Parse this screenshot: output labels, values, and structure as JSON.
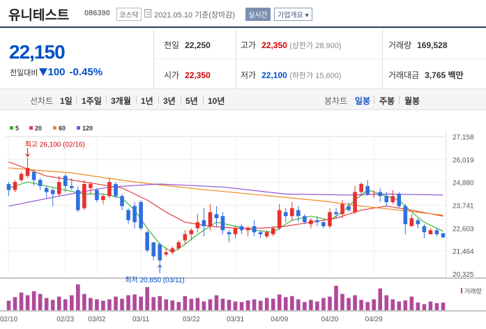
{
  "header": {
    "stock_name": "유니테스트",
    "stock_code": "086390",
    "market": "코스닥",
    "date": "2021.05.10 기준(장마감)",
    "realtime_label": "실시간",
    "company_info_label": "기업개요 ▾"
  },
  "price": {
    "current": "22,150",
    "change_label": "전일대비",
    "change_value": "100",
    "change_pct": "-0.45%"
  },
  "stats": {
    "prev_close_label": "전일",
    "prev_close": "22,250",
    "high_label": "고가",
    "high": "22,350",
    "upper_limit": "(상한가 28,900)",
    "volume_label": "거래량",
    "volume": "169,528",
    "open_label": "시가",
    "open": "22,350",
    "low_label": "저가",
    "low": "22,100",
    "lower_limit": "(하한가 15,600)",
    "trade_value_label": "거래대금",
    "trade_value": "3,765 백만"
  },
  "period_bar": {
    "line_chart_label": "선차트",
    "line_periods": [
      "1일",
      "1주일",
      "3개월",
      "1년",
      "3년",
      "5년",
      "10년"
    ],
    "candle_chart_label": "봉차트",
    "candle_periods": [
      "일봉",
      "주봉",
      "월봉"
    ],
    "active_candle": "일봉"
  },
  "legend": [
    {
      "label": "5",
      "color": "#3bb33b"
    },
    {
      "label": "20",
      "color": "#e04040"
    },
    {
      "label": "60",
      "color": "#f08a20"
    },
    {
      "label": "120",
      "color": "#9050d0"
    }
  ],
  "chart_data": {
    "type": "candlestick",
    "y_ticks": [
      "27,158",
      "26,019",
      "24,880",
      "23,741",
      "22,603",
      "21,464",
      "20,325"
    ],
    "ylim": [
      20325,
      27158
    ],
    "x_ticks": [
      "02/10",
      "02/23",
      "03/02",
      "03/11",
      "03/22",
      "03/31",
      "04/09",
      "04/20",
      "04/29"
    ],
    "x_tick_index": [
      0,
      9,
      14,
      21,
      29,
      36,
      43,
      51,
      58
    ],
    "annotations": {
      "high": "최고 26,100 (02/16)",
      "low": "최저 20,850 (03/11)"
    },
    "volume_label": "거래량",
    "candles": [
      [
        24800,
        24500,
        24900,
        24200
      ],
      [
        24500,
        24900,
        25000,
        24400
      ],
      [
        25000,
        25300,
        25400,
        24900
      ],
      [
        25200,
        25600,
        26100,
        25100
      ],
      [
        25400,
        25000,
        25500,
        24700
      ],
      [
        25000,
        24700,
        25100,
        24500
      ],
      [
        24600,
        24400,
        24700,
        24100
      ],
      [
        24500,
        24300,
        24600,
        23700
      ],
      [
        24300,
        24900,
        25200,
        24200
      ],
      [
        25200,
        24700,
        25300,
        24400
      ],
      [
        24700,
        24600,
        25100,
        24500
      ],
      [
        24500,
        23500,
        24700,
        23400
      ],
      [
        23600,
        24800,
        25000,
        23500
      ],
      [
        24600,
        24800,
        24900,
        24300
      ],
      [
        24500,
        24000,
        24600,
        23900
      ],
      [
        24000,
        24200,
        24300,
        23800
      ],
      [
        24200,
        24900,
        25100,
        24100
      ],
      [
        24800,
        24200,
        24900,
        24100
      ],
      [
        24200,
        23700,
        24300,
        23500
      ],
      [
        23500,
        23000,
        23600,
        22800
      ],
      [
        23700,
        22900,
        23900,
        22600
      ],
      [
        23900,
        22600,
        24000,
        22500
      ],
      [
        22400,
        21500,
        22500,
        21400
      ],
      [
        21900,
        21200,
        21900,
        21000
      ],
      [
        21800,
        21000,
        21900,
        20850
      ],
      [
        21300,
        21400,
        21600,
        21200
      ],
      [
        21400,
        21600,
        21700,
        21300
      ],
      [
        21600,
        21900,
        22000,
        21500
      ],
      [
        22000,
        22300,
        22500,
        21800
      ],
      [
        22300,
        22500,
        22600,
        22000
      ],
      [
        22600,
        22900,
        23300,
        22400
      ],
      [
        23000,
        22700,
        23600,
        22200
      ],
      [
        22700,
        23400,
        23800,
        22500
      ],
      [
        23300,
        23100,
        23700,
        22700
      ],
      [
        23200,
        22500,
        23400,
        22300
      ],
      [
        22400,
        22300,
        22500,
        21900
      ],
      [
        22300,
        22600,
        22700,
        22100
      ],
      [
        22700,
        22500,
        22800,
        22300
      ],
      [
        22500,
        22600,
        22700,
        22200
      ],
      [
        22700,
        22400,
        23000,
        22200
      ],
      [
        22400,
        22300,
        22500,
        22100
      ],
      [
        22200,
        22400,
        22500,
        22100
      ],
      [
        22300,
        22600,
        22700,
        22200
      ],
      [
        22600,
        23500,
        23800,
        22500
      ],
      [
        23400,
        23200,
        23600,
        22900
      ],
      [
        23200,
        23600,
        23900,
        23000
      ],
      [
        23500,
        23200,
        23700,
        22900
      ],
      [
        23200,
        22900,
        23300,
        22800
      ],
      [
        22800,
        23000,
        23100,
        22600
      ],
      [
        23000,
        22900,
        23200,
        22700
      ],
      [
        22900,
        22700,
        23000,
        22600
      ],
      [
        22700,
        23400,
        23600,
        22600
      ],
      [
        23400,
        23300,
        23600,
        23100
      ],
      [
        23300,
        23800,
        24000,
        23100
      ],
      [
        23700,
        23500,
        23900,
        23400
      ],
      [
        23400,
        24400,
        24700,
        23300
      ],
      [
        24400,
        24800,
        24900,
        24200
      ],
      [
        24700,
        24300,
        25000,
        24200
      ],
      [
        24300,
        24300,
        24500,
        24100
      ],
      [
        24400,
        24200,
        24600,
        23900
      ],
      [
        24200,
        23900,
        24400,
        23700
      ],
      [
        23900,
        24200,
        24500,
        23800
      ],
      [
        24300,
        23700,
        24400,
        23600
      ],
      [
        23700,
        22800,
        23800,
        22300
      ],
      [
        22700,
        23100,
        23300,
        22700
      ],
      [
        23000,
        22800,
        23100,
        22600
      ],
      [
        22700,
        22400,
        22800,
        22100
      ],
      [
        22300,
        22500,
        22600,
        22300
      ],
      [
        22500,
        22300,
        22600,
        22200
      ],
      [
        22350,
        22150,
        22350,
        22100
      ]
    ],
    "volume": [
      35,
      48,
      65,
      55,
      70,
      60,
      45,
      38,
      50,
      40,
      55,
      95,
      60,
      45,
      40,
      35,
      40,
      50,
      42,
      55,
      58,
      50,
      85,
      48,
      52,
      40,
      36,
      30,
      52,
      42,
      45,
      32,
      40,
      55,
      42,
      38,
      32,
      30,
      36,
      40,
      35,
      45,
      42,
      58,
      48,
      52,
      40,
      30,
      38,
      32,
      45,
      50,
      90,
      60,
      45,
      55,
      38,
      30,
      40,
      80,
      55,
      40,
      32,
      36,
      50,
      28,
      22,
      32,
      26,
      28
    ],
    "ma_series": [
      {
        "label": "5",
        "color": "#3bb33b",
        "points": [
          [
            0,
            24600
          ],
          [
            3,
            24900
          ],
          [
            6,
            24700
          ],
          [
            9,
            24500
          ],
          [
            12,
            24300
          ],
          [
            15,
            24300
          ],
          [
            18,
            24100
          ],
          [
            20,
            23500
          ],
          [
            22,
            22600
          ],
          [
            24,
            21800
          ],
          [
            26,
            21400
          ],
          [
            28,
            21800
          ],
          [
            30,
            22300
          ],
          [
            33,
            22900
          ],
          [
            36,
            22700
          ],
          [
            39,
            22500
          ],
          [
            42,
            22400
          ],
          [
            45,
            23000
          ],
          [
            48,
            23200
          ],
          [
            51,
            23000
          ],
          [
            53,
            23400
          ],
          [
            55,
            24000
          ],
          [
            57,
            24500
          ],
          [
            60,
            24200
          ],
          [
            62,
            24000
          ],
          [
            64,
            23400
          ],
          [
            66,
            22900
          ],
          [
            69,
            22450
          ]
        ]
      },
      {
        "label": "20",
        "color": "#e04040",
        "points": [
          [
            0,
            25900
          ],
          [
            6,
            25200
          ],
          [
            12,
            24900
          ],
          [
            18,
            24600
          ],
          [
            22,
            24000
          ],
          [
            25,
            23400
          ],
          [
            28,
            22900
          ],
          [
            32,
            22700
          ],
          [
            36,
            22600
          ],
          [
            40,
            22600
          ],
          [
            44,
            22700
          ],
          [
            48,
            22900
          ],
          [
            52,
            23100
          ],
          [
            56,
            23500
          ],
          [
            60,
            23700
          ],
          [
            64,
            23500
          ],
          [
            69,
            23200
          ]
        ]
      },
      {
        "label": "60",
        "color": "#f08a20",
        "points": [
          [
            0,
            25600
          ],
          [
            10,
            25350
          ],
          [
            20,
            24900
          ],
          [
            30,
            24550
          ],
          [
            40,
            24250
          ],
          [
            50,
            23950
          ],
          [
            56,
            23700
          ],
          [
            62,
            23500
          ],
          [
            69,
            23250
          ]
        ]
      },
      {
        "label": "120",
        "color": "#9050d0",
        "points": [
          [
            0,
            23700
          ],
          [
            8,
            24200
          ],
          [
            16,
            24650
          ],
          [
            24,
            24800
          ],
          [
            34,
            24650
          ],
          [
            44,
            24300
          ],
          [
            54,
            24250
          ],
          [
            60,
            24300
          ],
          [
            69,
            24250
          ]
        ]
      }
    ]
  }
}
